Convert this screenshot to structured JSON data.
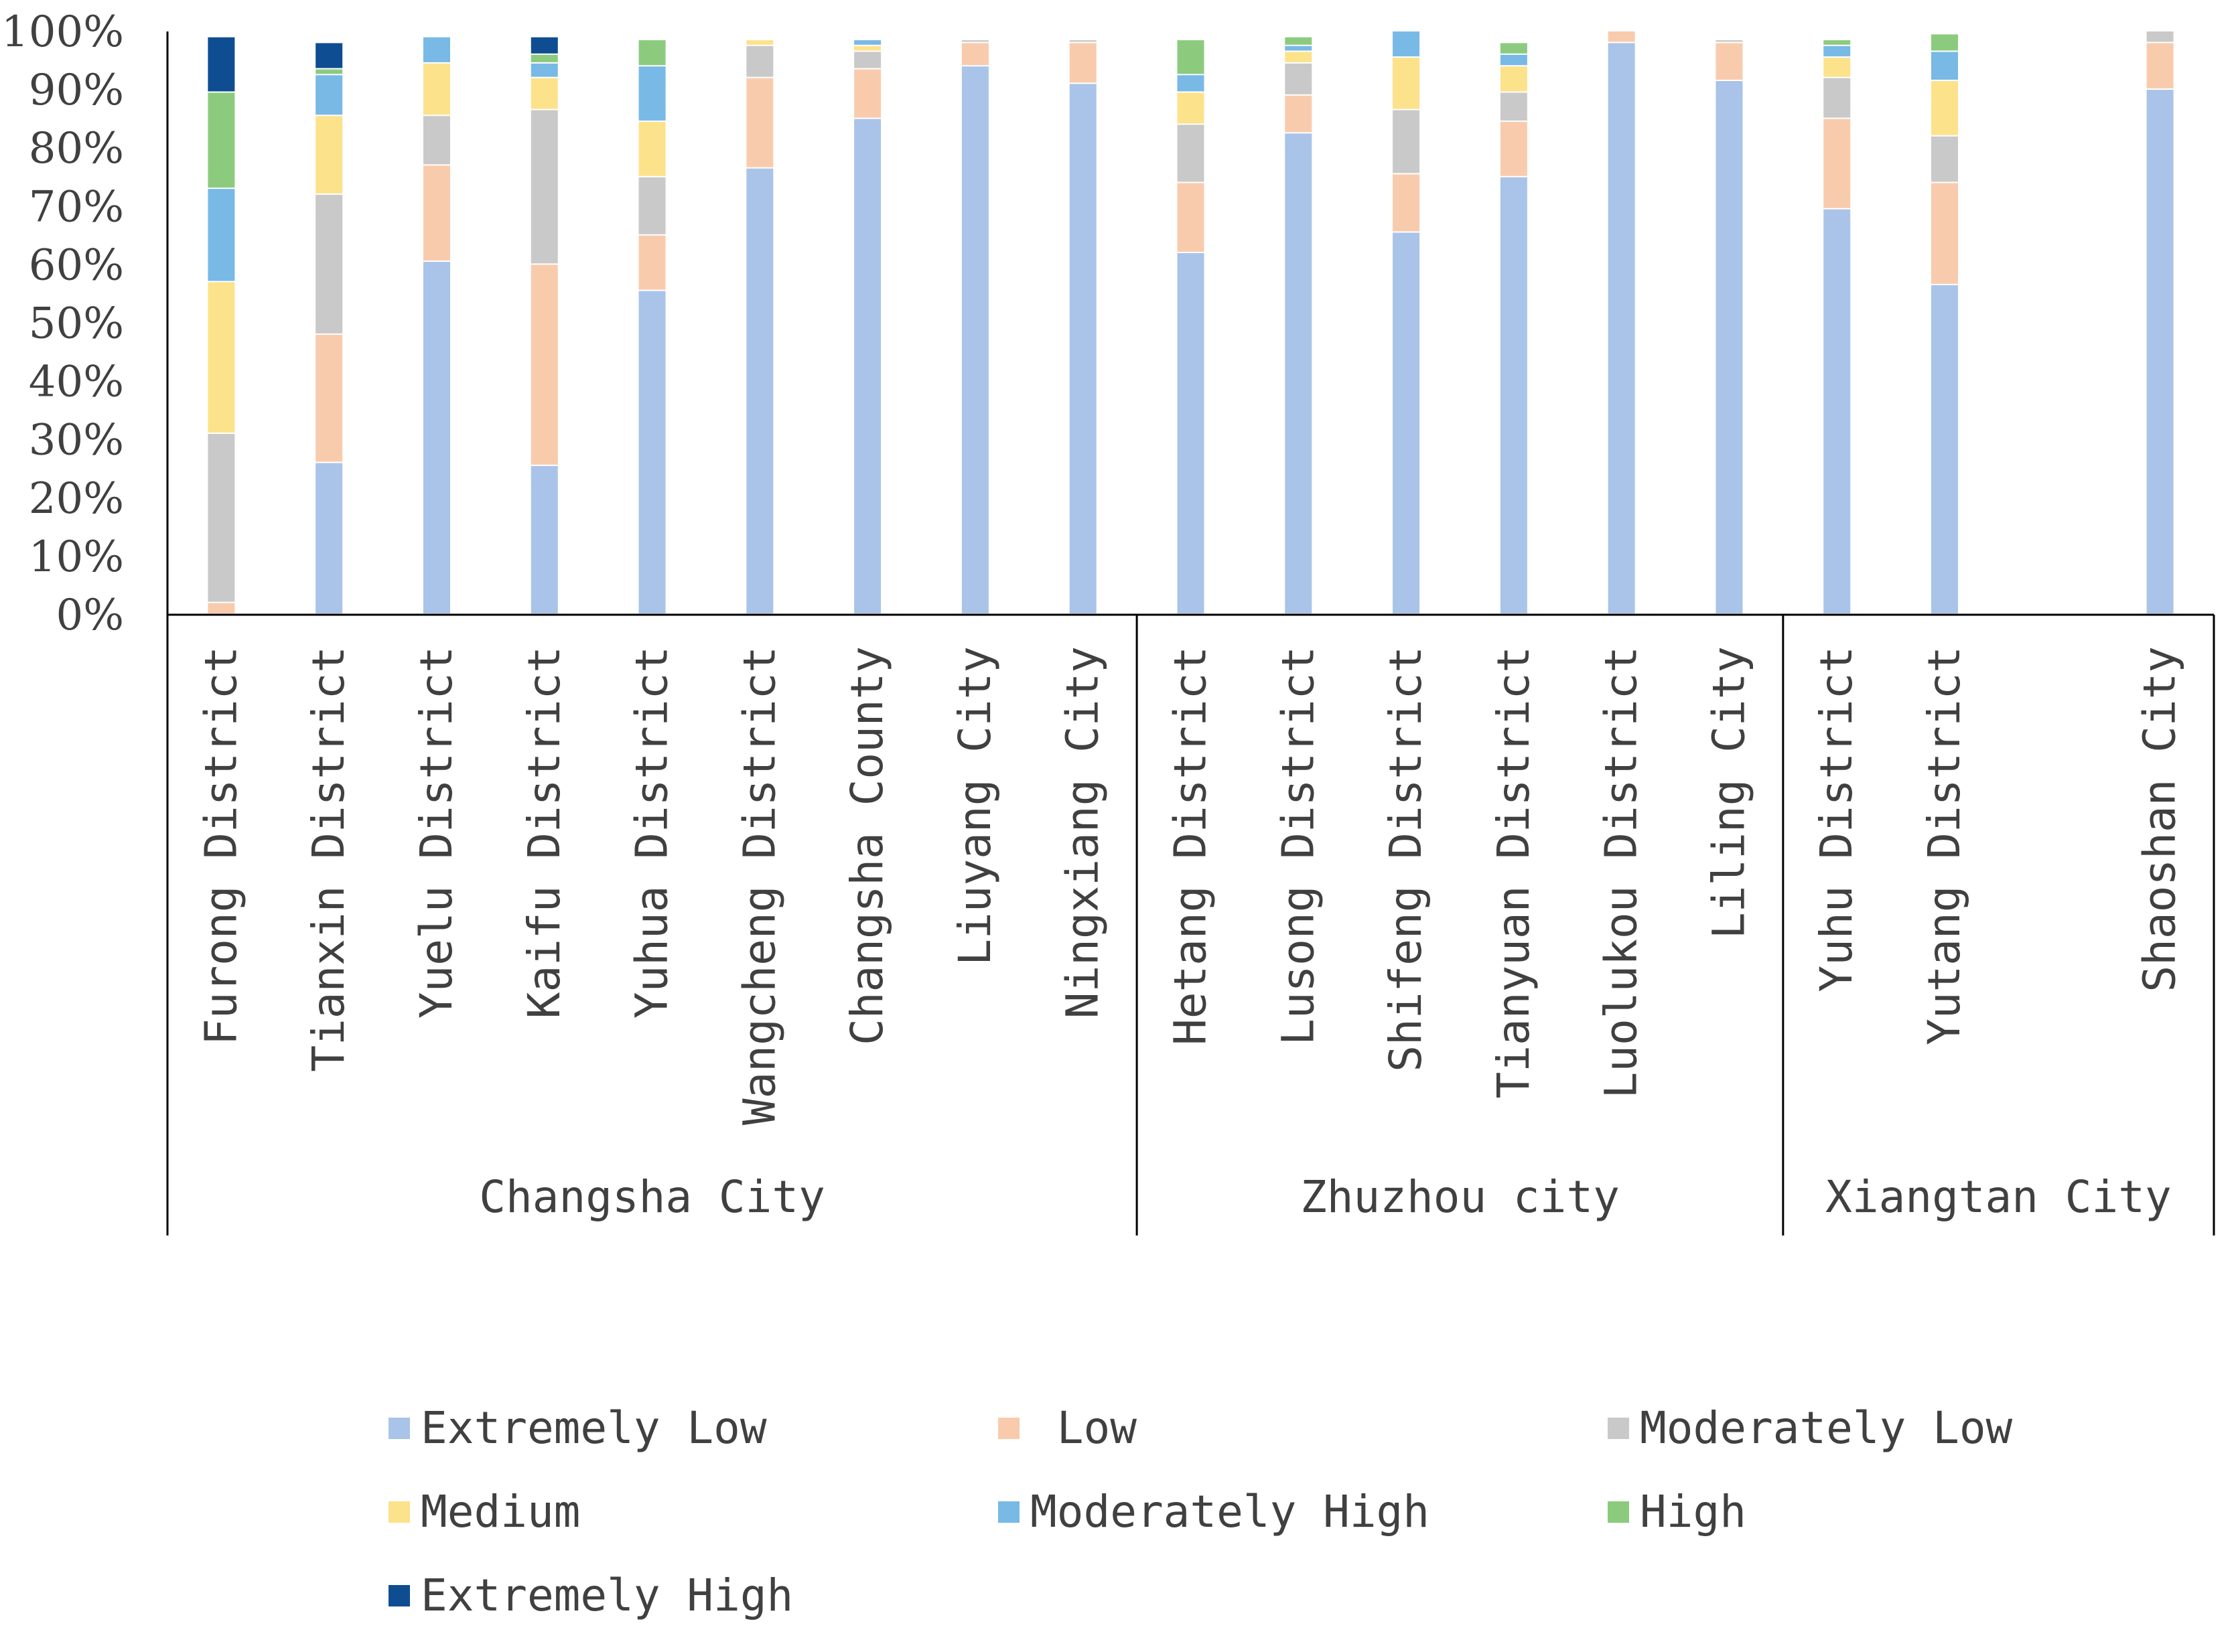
{
  "chart_data": {
    "type": "bar",
    "stacked": true,
    "percent": true,
    "ylim": [
      0,
      100
    ],
    "y_ticks": [
      "0%",
      "10%",
      "20%",
      "30%",
      "40%",
      "50%",
      "60%",
      "70%",
      "80%",
      "90%",
      "100%"
    ],
    "grid": false,
    "legend_position": "bottom",
    "categories": [
      "Furong District",
      "Tianxin District",
      "Yuelu District",
      "Kaifu District",
      "Yuhua District",
      "Wangcheng District",
      "Changsha County",
      "Liuyang City",
      "Ningxiang City",
      "Hetang District",
      "Lusong District",
      "Shifeng District",
      "Tianyuan District",
      "Luolukou District",
      "Liling City",
      "Yuhu District",
      "Yutang District",
      "",
      "Shaoshan City"
    ],
    "groups": [
      {
        "name": "Changsha City",
        "size": 9
      },
      {
        "name": "Zhuzhou city",
        "size": 6
      },
      {
        "name": "Xiangtan City",
        "size": 4
      }
    ],
    "series": [
      {
        "name": "Extremely Low",
        "color": "#a9c4e8",
        "values": [
          0,
          26,
          60.5,
          25.5,
          55.5,
          76.5,
          85,
          94,
          91,
          62,
          82.5,
          65.5,
          75,
          98,
          91.5,
          69.5,
          56.5,
          0,
          90
        ]
      },
      {
        "name": " Low",
        "color": "#f9cbad",
        "values": [
          2,
          22,
          16.5,
          34.5,
          9.5,
          15.5,
          8.5,
          4,
          7,
          12,
          6.5,
          10,
          9.5,
          2,
          6.5,
          15.5,
          17.5,
          0,
          8
        ]
      },
      {
        "name": "Moderately Low",
        "color": "#c9c9c9",
        "values": [
          29,
          24,
          8.5,
          26.5,
          10,
          5.5,
          3,
          0.5,
          0.5,
          10,
          5.5,
          11,
          5,
          0,
          0.5,
          7,
          8,
          0,
          2
        ]
      },
      {
        "name": "Medium",
        "color": "#fde28c",
        "values": [
          26,
          13.5,
          9,
          5.5,
          9.5,
          1,
          1,
          0,
          0,
          5.5,
          2,
          9,
          4.5,
          0,
          0,
          3.5,
          9.5,
          0,
          0
        ]
      },
      {
        "name": "Moderately High",
        "color": "#78b9e6",
        "values": [
          16,
          7,
          4.5,
          2.5,
          9.5,
          0,
          1,
          0,
          0,
          3,
          1,
          4.5,
          2,
          0,
          0,
          2,
          5,
          0,
          0
        ]
      },
      {
        "name": "High",
        "color": "#8ccb7e",
        "values": [
          16.5,
          1,
          0,
          1.5,
          4.5,
          0,
          0,
          0,
          0,
          6,
          1.5,
          0,
          2,
          0,
          0,
          1,
          3,
          0,
          0
        ]
      },
      {
        "name": "Extremely High",
        "color": "#0f4d92",
        "values": [
          9.5,
          4.5,
          0,
          3,
          0,
          0,
          0,
          0,
          0,
          0,
          0,
          0,
          0,
          0,
          0,
          0,
          0,
          0,
          0
        ]
      }
    ]
  }
}
